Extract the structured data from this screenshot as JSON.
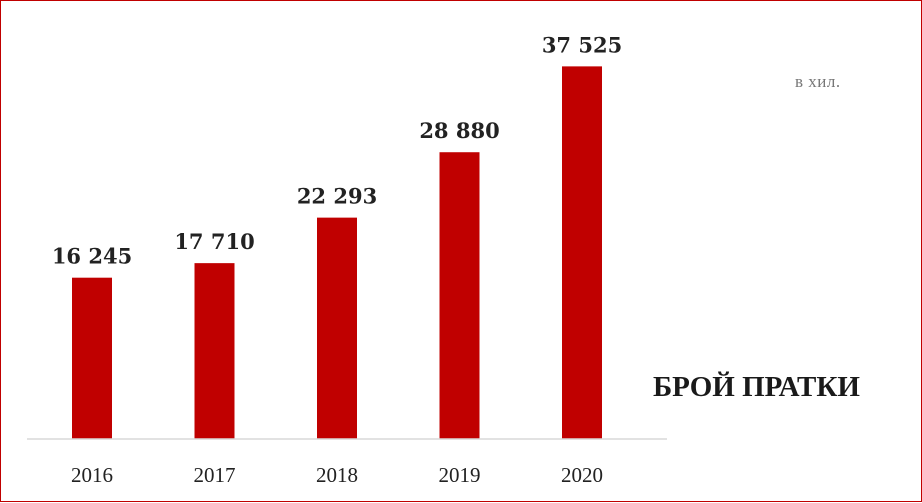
{
  "chart_data": {
    "type": "bar",
    "title": "БРОЙ ПРАТКИ",
    "unit_note": "в хил.",
    "categories": [
      "2016",
      "2017",
      "2018",
      "2019",
      "2020"
    ],
    "values": [
      16245,
      17710,
      22293,
      28880,
      37525
    ],
    "value_labels": [
      "16 245",
      "17 710",
      "22 293",
      "28 880",
      "37 525"
    ],
    "ylim": [
      0,
      40000
    ],
    "grid": false,
    "legend": "none",
    "bar_color": "#c00000",
    "axis_color": "#d9d9d9"
  }
}
